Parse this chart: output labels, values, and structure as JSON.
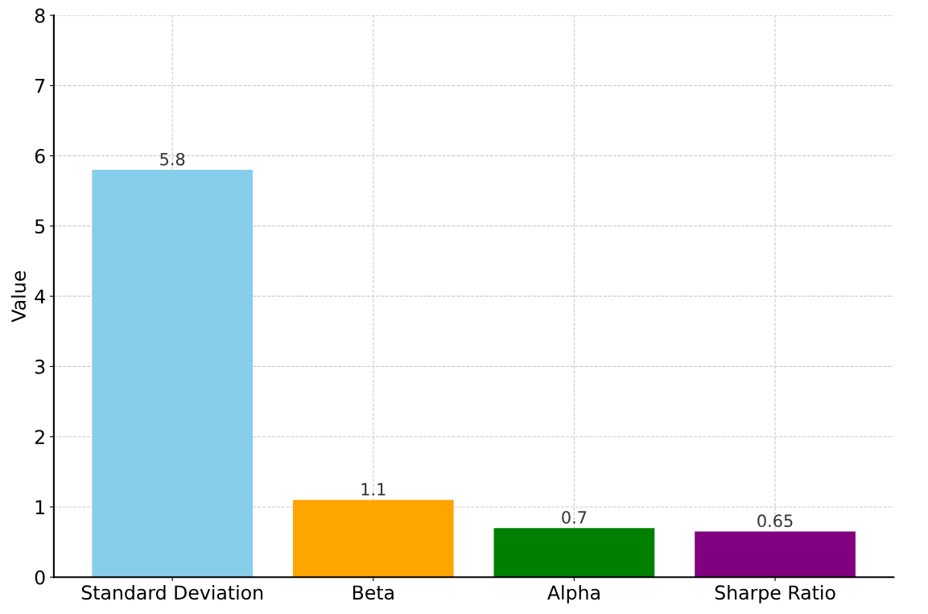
{
  "chart_data": {
    "type": "bar",
    "ylabel": "Value",
    "categories": [
      "Standard Deviation",
      "Beta",
      "Alpha",
      "Sharpe Ratio"
    ],
    "values": [
      5.8,
      1.1,
      0.7,
      0.65
    ],
    "colors": [
      "#87ceeb",
      "#ffa500",
      "#008000",
      "#800080"
    ],
    "ylim": [
      0,
      8
    ],
    "yticks": [
      0,
      1,
      2,
      3,
      4,
      5,
      6,
      7,
      8
    ],
    "grid": true,
    "line_style": "dashed",
    "data_labels": true
  }
}
